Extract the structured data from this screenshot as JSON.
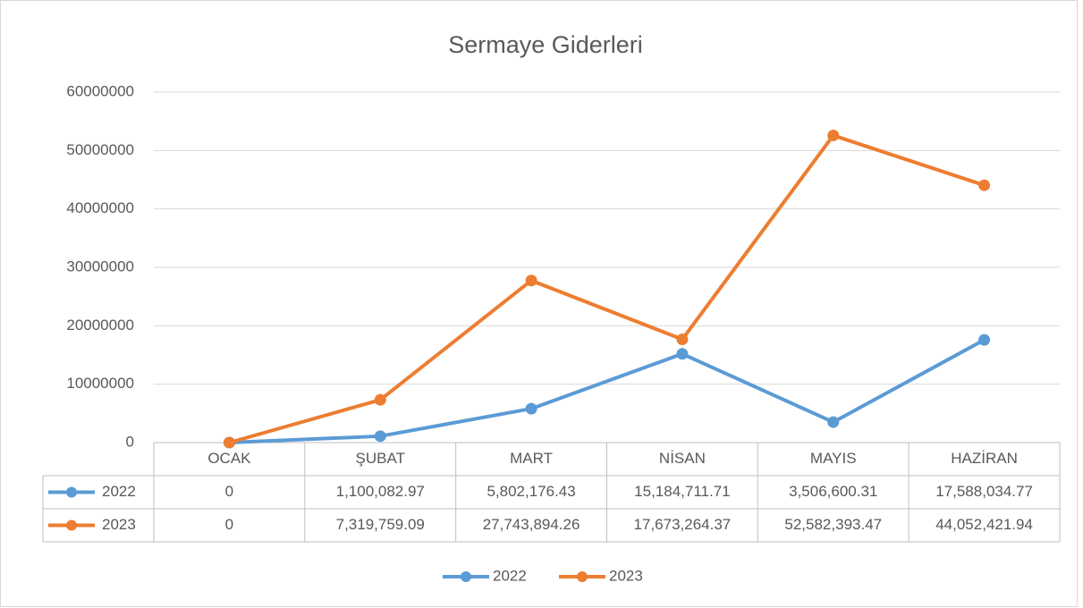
{
  "chart_data": {
    "type": "line",
    "title": "Sermaye Giderleri",
    "categories": [
      "OCAK",
      "ŞUBAT",
      "MART",
      "NİSAN",
      "MAYIS",
      "HAZİRAN"
    ],
    "series": [
      {
        "name": "2022",
        "color": "#5b9bd5",
        "values": [
          0,
          1100082.97,
          5802176.43,
          15184711.71,
          3506600.31,
          17588034.77
        ],
        "value_labels": [
          "0",
          "1,100,082.97",
          "5,802,176.43",
          "15,184,711.71",
          "3,506,600.31",
          "17,588,034.77"
        ]
      },
      {
        "name": "2023",
        "color": "#ed7d31",
        "values": [
          0,
          7319759.09,
          27743894.26,
          17673264.37,
          52582393.47,
          44052421.94
        ],
        "value_labels": [
          "0",
          "7,319,759.09",
          "27,743,894.26",
          "17,673,264.37",
          "52,582,393.47",
          "44,052,421.94"
        ]
      }
    ],
    "ylim": [
      0,
      60000000
    ],
    "yticks": [
      0,
      10000000,
      20000000,
      30000000,
      40000000,
      50000000,
      60000000
    ],
    "grid": true,
    "legend": "bottom"
  }
}
